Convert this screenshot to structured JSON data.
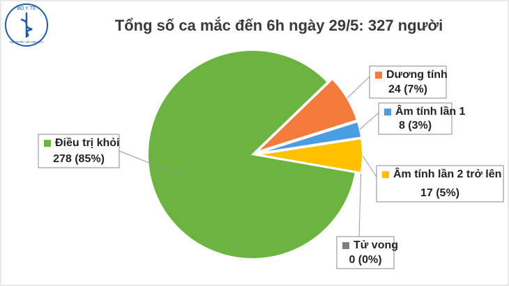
{
  "logo": {
    "top": "BỘ Y TẾ",
    "bottom": "MINISTRY OF HEALTH"
  },
  "chart_data": {
    "type": "pie",
    "title": "Tổng số ca mắc đến 6h ngày 29/5: 327 người",
    "categories": [
      "Dương tính",
      "Âm tính lần 1",
      "Âm tính lần 2 trở lên",
      "Tử vong",
      "Điều trị khỏi"
    ],
    "values": [
      24,
      8,
      17,
      0,
      278
    ],
    "value_labels": [
      "24 (7%)",
      "8 (3%)",
      "17 (5%)",
      "0 (0%)",
      "278 (85%)"
    ],
    "colors": [
      "#f47b3b",
      "#4a9de0",
      "#ffc000",
      "#7f7f7f",
      "#6cb33f"
    ]
  }
}
